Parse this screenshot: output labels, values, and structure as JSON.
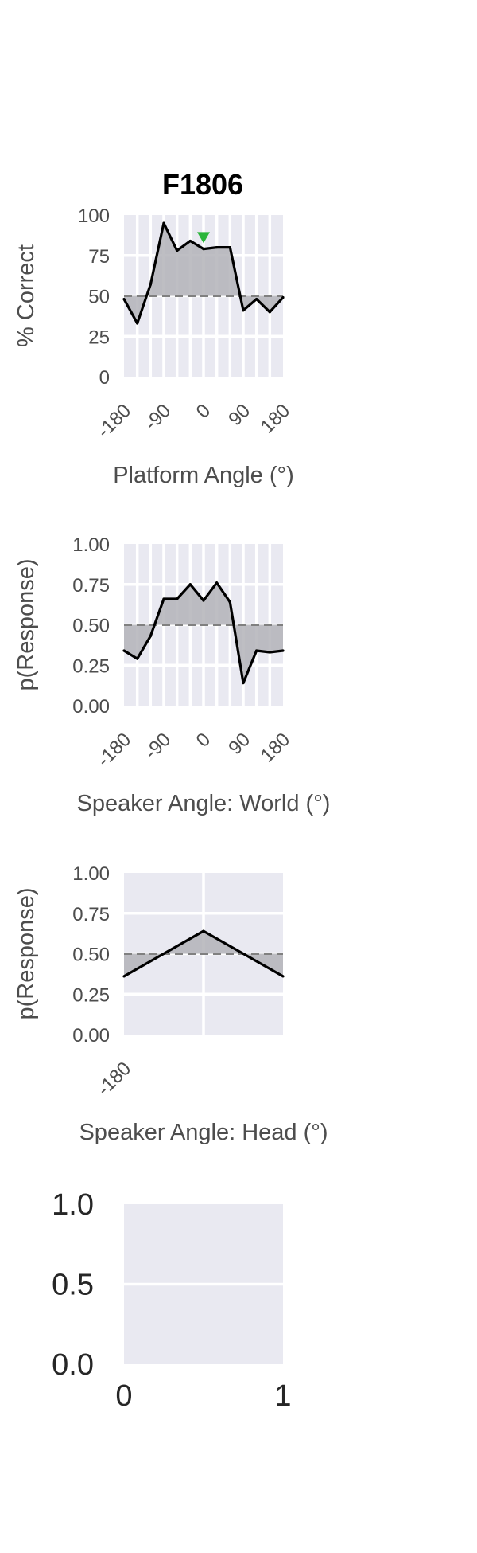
{
  "figure_title": "F1806",
  "colors": {
    "panel_bg": "#e9e9f1",
    "grid": "#ffffff",
    "line": "#000000",
    "fill": "#b3b3b8",
    "chance_line": "#808080",
    "marker": "#2bb53b",
    "tick_text": "#4d4d4d"
  },
  "chart_data": [
    {
      "type": "line",
      "xlabel": "Platform Angle (°)",
      "ylabel": "% Correct",
      "xlim": [
        -180,
        180
      ],
      "ylim": [
        0,
        100
      ],
      "xticks": [
        -180,
        -90,
        0,
        90,
        180
      ],
      "xtick_labels": [
        "-180",
        "-90",
        "0",
        "90",
        "180"
      ],
      "yticks": [
        0,
        25,
        50,
        75,
        100
      ],
      "ytick_labels": [
        "0",
        "25",
        "50",
        "75",
        "100"
      ],
      "x_gridlines": [
        -150,
        -120,
        -90,
        -60,
        -30,
        0,
        30,
        60,
        90,
        120,
        150
      ],
      "y_gridlines": [
        25,
        50,
        75
      ],
      "x": [
        -180,
        -150,
        -120,
        -90,
        -60,
        -30,
        0,
        30,
        60,
        90,
        120,
        150,
        180
      ],
      "y": [
        48,
        33,
        57,
        95,
        78,
        84,
        79,
        80,
        80,
        41,
        48,
        40,
        49
      ],
      "chance": 50,
      "marker": {
        "x": 0,
        "y": 86,
        "shape": "triangle-down"
      }
    },
    {
      "type": "line",
      "xlabel": "Speaker Angle: World (°)",
      "ylabel": "p(Response)",
      "xlim": [
        -180,
        180
      ],
      "ylim": [
        0,
        1
      ],
      "xticks": [
        -180,
        -90,
        0,
        90,
        180
      ],
      "xtick_labels": [
        "-180",
        "-90",
        "0",
        "90",
        "180"
      ],
      "yticks": [
        0,
        0.25,
        0.5,
        0.75,
        1.0
      ],
      "ytick_labels": [
        "0.00",
        "0.25",
        "0.50",
        "0.75",
        "1.00"
      ],
      "x_gridlines": [
        -150,
        -120,
        -90,
        -60,
        -30,
        0,
        30,
        60,
        90,
        120,
        150
      ],
      "y_gridlines": [
        0.25,
        0.5,
        0.75
      ],
      "x": [
        -180,
        -150,
        -120,
        -90,
        -60,
        -30,
        0,
        30,
        60,
        90,
        120,
        150,
        180
      ],
      "y": [
        0.34,
        0.29,
        0.43,
        0.66,
        0.66,
        0.75,
        0.65,
        0.76,
        0.64,
        0.14,
        0.34,
        0.33,
        0.34
      ],
      "chance": 0.5
    },
    {
      "type": "line",
      "xlabel": "Speaker Angle: Head (°)",
      "ylabel": "p(Response)",
      "xlim": [
        -180,
        180
      ],
      "ylim": [
        0,
        1
      ],
      "xticks": [
        -180
      ],
      "xtick_labels": [
        "-180"
      ],
      "yticks": [
        0,
        0.25,
        0.5,
        0.75,
        1.0
      ],
      "ytick_labels": [
        "0.00",
        "0.25",
        "0.50",
        "0.75",
        "1.00"
      ],
      "x_gridlines": [
        0
      ],
      "y_gridlines": [
        0.25,
        0.5,
        0.75
      ],
      "x": [
        -180,
        0,
        180
      ],
      "y": [
        0.36,
        0.64,
        0.36
      ],
      "chance": 0.5
    },
    {
      "type": "empty",
      "xlim": [
        0,
        1
      ],
      "ylim": [
        0,
        1
      ],
      "xticks": [
        0,
        1
      ],
      "xtick_labels": [
        "0",
        "1"
      ],
      "yticks": [
        0,
        0.5,
        1.0
      ],
      "ytick_labels": [
        "0.0",
        "0.5",
        "1.0"
      ],
      "y_gridlines": [
        0.5
      ]
    }
  ]
}
